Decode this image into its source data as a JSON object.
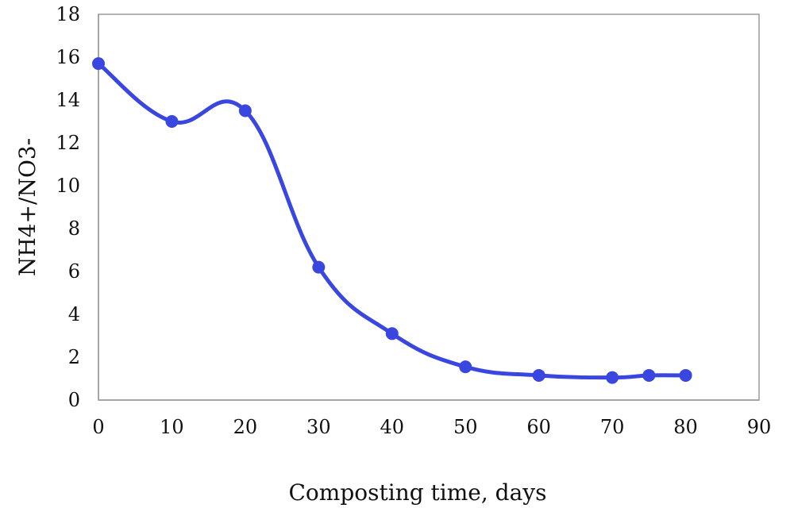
{
  "chart_data": {
    "type": "line",
    "title": "",
    "xlabel": "Composting time, days",
    "ylabel": "NH4+/NO3-",
    "xlim": [
      0,
      90
    ],
    "ylim": [
      0,
      18
    ],
    "x_ticks": [
      "0",
      "10",
      "20",
      "30",
      "40",
      "50",
      "60",
      "70",
      "80",
      "90"
    ],
    "y_ticks": [
      "0",
      "2",
      "4",
      "6",
      "8",
      "10",
      "12",
      "14",
      "16",
      "18"
    ],
    "grid": false,
    "smooth": true,
    "series": [
      {
        "color": "#3a46e0",
        "points": [
          {
            "x": 0,
            "y": 15.7
          },
          {
            "x": 10,
            "y": 13.0
          },
          {
            "x": 20,
            "y": 13.5
          },
          {
            "x": 30,
            "y": 6.2
          },
          {
            "x": 40,
            "y": 3.1
          },
          {
            "x": 50,
            "y": 1.55
          },
          {
            "x": 60,
            "y": 1.15
          },
          {
            "x": 70,
            "y": 1.05
          },
          {
            "x": 75,
            "y": 1.15
          },
          {
            "x": 80,
            "y": 1.15
          }
        ]
      }
    ]
  }
}
